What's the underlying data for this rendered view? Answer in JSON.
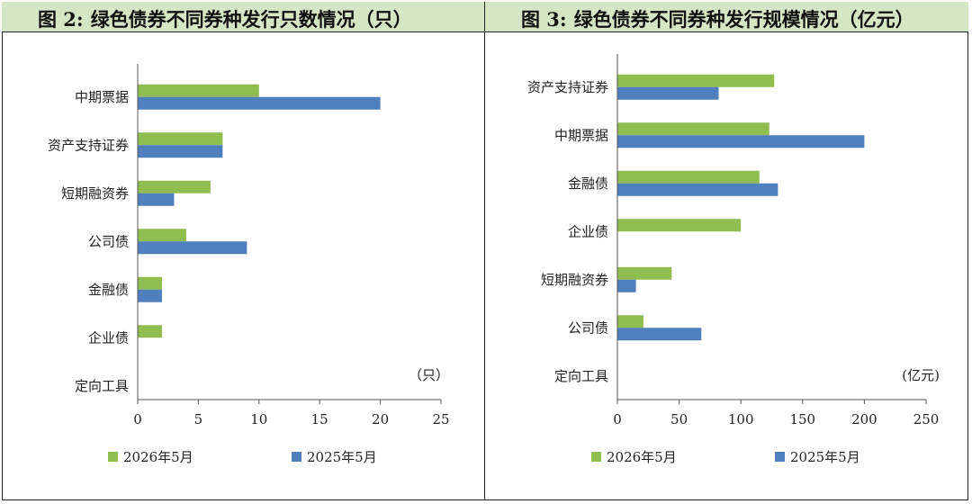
{
  "colors": {
    "series_2026": "#8fbd4f",
    "series_2025": "#4f7fbd",
    "header_bg": "#d5e6c5"
  },
  "panels": [
    {
      "figure_label": "图 2:",
      "title": "绿色债券不同券种发行只数情况（只）",
      "unit_label": "（只）"
    },
    {
      "figure_label": "图 3:",
      "title": "绿色债券不同券种发行规模情况（亿元）",
      "unit_label": "(亿元)"
    }
  ],
  "chart_data": [
    {
      "type": "bar",
      "orientation": "horizontal",
      "title": "绿色债券不同券种发行只数情况（只）",
      "categories": [
        "中期票据",
        "资产支持证券",
        "短期融资券",
        "公司债",
        "金融债",
        "企业债",
        "定向工具"
      ],
      "series": [
        {
          "name": "2026年5月",
          "values": [
            10,
            7,
            6,
            4,
            2,
            2,
            0
          ]
        },
        {
          "name": "2025年5月",
          "values": [
            20,
            7,
            3,
            9,
            2,
            0,
            0
          ]
        }
      ],
      "xlim": [
        0,
        25
      ],
      "xticks": [
        0,
        5,
        10,
        15,
        20,
        25
      ],
      "xlabel": "（只）",
      "legend": "bottom",
      "grid": false
    },
    {
      "type": "bar",
      "orientation": "horizontal",
      "title": "绿色债券不同券种发行规模情况（亿元）",
      "categories": [
        "资产支持证券",
        "中期票据",
        "金融债",
        "企业债",
        "短期融资券",
        "公司债",
        "定向工具"
      ],
      "series": [
        {
          "name": "2026年5月",
          "values": [
            127,
            123,
            115,
            100,
            44,
            21,
            0
          ]
        },
        {
          "name": "2025年5月",
          "values": [
            82,
            200,
            130,
            0,
            15,
            68,
            0
          ]
        }
      ],
      "xlim": [
        0,
        250
      ],
      "xticks": [
        0,
        50,
        100,
        150,
        200,
        250
      ],
      "xlabel": "(亿元)",
      "legend": "bottom",
      "grid": false
    }
  ]
}
